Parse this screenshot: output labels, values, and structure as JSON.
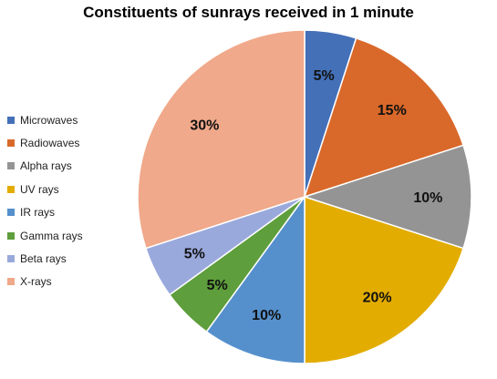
{
  "chart_data": {
    "type": "pie",
    "title": "Constituents of sunrays received in 1 minute",
    "slices": [
      {
        "name": "Microwaves",
        "value": 5,
        "label": "5%",
        "color": "#4470B8"
      },
      {
        "name": "Radiowaves",
        "value": 15,
        "label": "15%",
        "color": "#D9692A"
      },
      {
        "name": "Alpha rays",
        "value": 10,
        "label": "10%",
        "color": "#949494"
      },
      {
        "name": "UV rays",
        "value": 20,
        "label": "20%",
        "color": "#E3AC00"
      },
      {
        "name": "IR rays",
        "value": 10,
        "label": "10%",
        "color": "#5590CC"
      },
      {
        "name": "Gamma rays",
        "value": 5,
        "label": "5%",
        "color": "#5E9E3C"
      },
      {
        "name": "Beta rays",
        "value": 5,
        "label": "5%",
        "color": "#9AA9DC"
      },
      {
        "name": "X-rays",
        "value": 30,
        "label": "30%",
        "color": "#F0A98A"
      }
    ],
    "legend_position": "left"
  }
}
